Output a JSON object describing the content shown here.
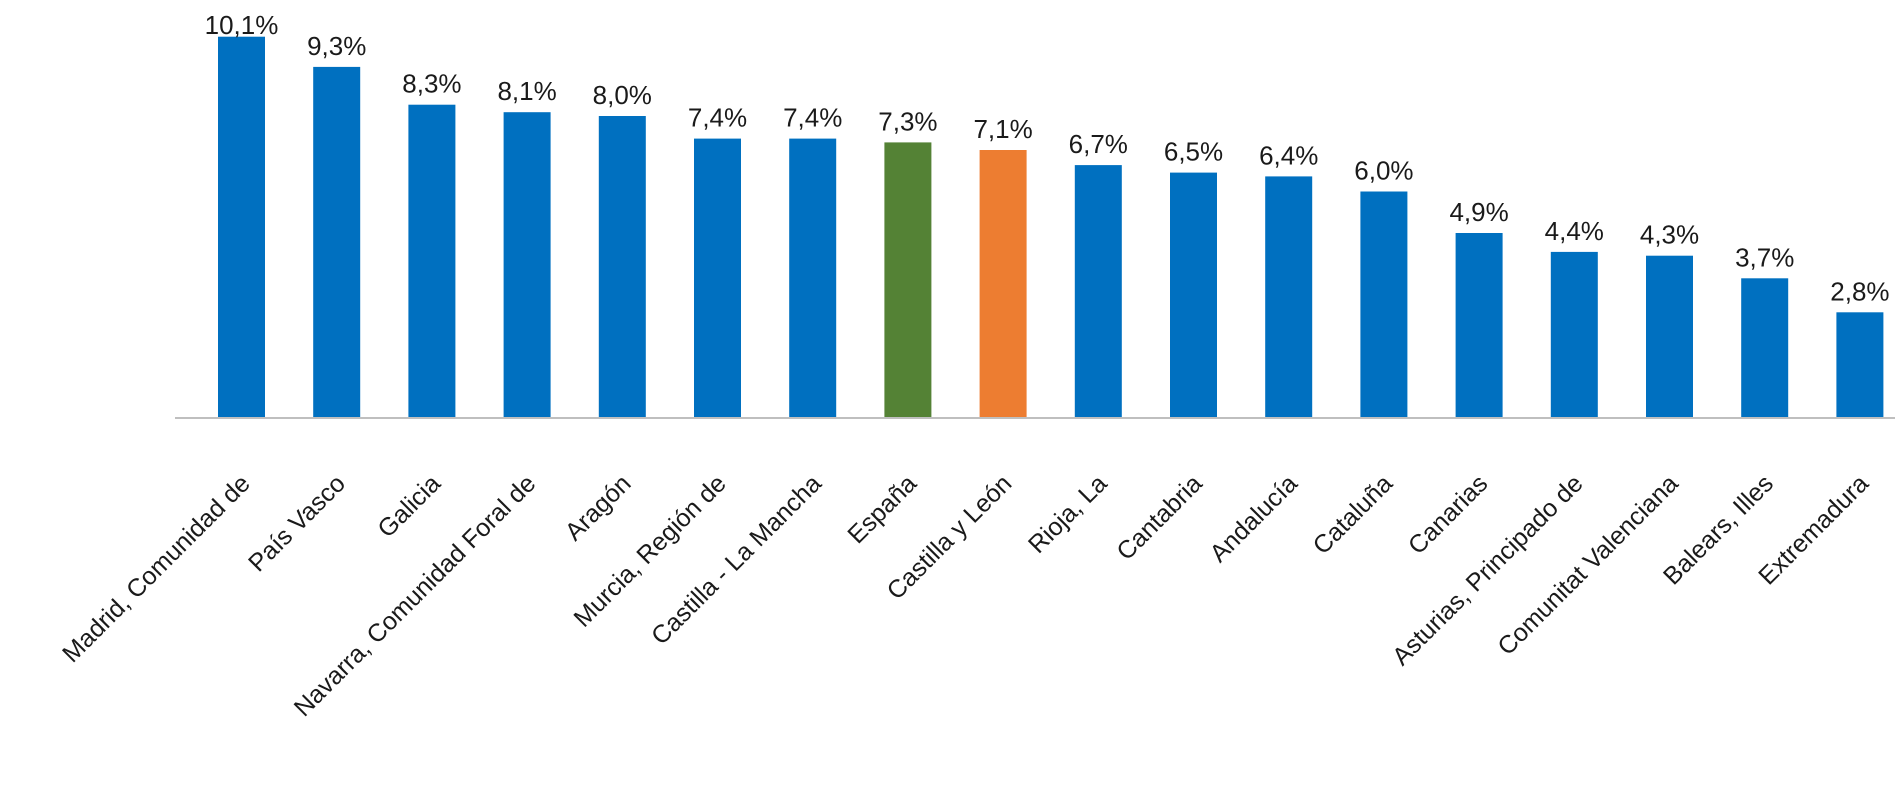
{
  "chart_data": {
    "type": "bar",
    "title": "",
    "xlabel": "",
    "ylabel": "",
    "ylim": [
      0,
      10.5
    ],
    "grid": false,
    "legend": "none",
    "categories": [
      "Madrid, Comunidad de",
      "País Vasco",
      "Galicia",
      "Navarra, Comunidad Foral de",
      "Aragón",
      "Murcia, Región de",
      "Castilla - La Mancha",
      "España",
      "Castilla y León",
      "Rioja, La",
      "Cantabria",
      "Andalucía",
      "Cataluña",
      "Canarias",
      "Asturias, Principado de",
      "Comunitat Valenciana",
      "Balears, Illes",
      "Extremadura"
    ],
    "values": [
      10.1,
      9.3,
      8.3,
      8.1,
      8.0,
      7.4,
      7.4,
      7.3,
      7.1,
      6.7,
      6.5,
      6.4,
      6.0,
      4.9,
      4.4,
      4.3,
      3.7,
      2.8
    ],
    "value_labels": [
      "10,1%",
      "9,3%",
      "8,3%",
      "8,1%",
      "8,0%",
      "7,4%",
      "7,4%",
      "7,3%",
      "7,1%",
      "6,7%",
      "6,5%",
      "6,4%",
      "6,0%",
      "4,9%",
      "4,4%",
      "4,3%",
      "3,7%",
      "2,8%"
    ],
    "colors": {
      "default": "#0070C0",
      "España": "#548235",
      "Castilla y León": "#ED7D31",
      "axis": "#BFBFBF"
    }
  }
}
